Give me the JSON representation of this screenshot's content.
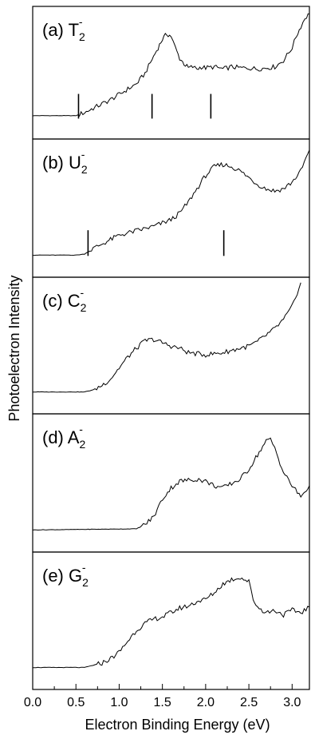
{
  "chart_data": {
    "type": "line",
    "xlabel": "Electron Binding Energy (eV)",
    "ylabel": "Photoelectron Intensity",
    "xlim": [
      0.0,
      3.2
    ],
    "x_ticks": [
      "0.0",
      "0.5",
      "1.0",
      "1.5",
      "2.0",
      "2.5",
      "3.0"
    ],
    "tick_values": [
      0.0,
      0.5,
      1.0,
      1.5,
      2.0,
      2.5,
      3.0
    ],
    "grid": false,
    "panels": [
      {
        "label": "(a) T",
        "subscript": "2",
        "superscript": "-",
        "markers": [
          0.53,
          1.38,
          2.06
        ],
        "ylim": [
          0,
          1
        ],
        "x": [
          0.0,
          0.5,
          0.6,
          0.7,
          0.8,
          0.9,
          1.0,
          1.1,
          1.2,
          1.3,
          1.38,
          1.45,
          1.5,
          1.55,
          1.6,
          1.65,
          1.7,
          1.75,
          1.8,
          1.85,
          1.9,
          1.95,
          2.0,
          2.1,
          2.2,
          2.3,
          2.4,
          2.5,
          2.6,
          2.7,
          2.8,
          2.9,
          3.0,
          3.05,
          3.1,
          3.15,
          3.2
        ],
        "y": [
          0.02,
          0.02,
          0.05,
          0.09,
          0.13,
          0.17,
          0.22,
          0.27,
          0.32,
          0.42,
          0.55,
          0.66,
          0.74,
          0.79,
          0.77,
          0.66,
          0.56,
          0.51,
          0.47,
          0.48,
          0.46,
          0.48,
          0.47,
          0.48,
          0.46,
          0.48,
          0.47,
          0.47,
          0.46,
          0.47,
          0.48,
          0.54,
          0.66,
          0.77,
          0.86,
          0.94,
          0.98
        ]
      },
      {
        "label": "(b) U",
        "subscript": "2",
        "superscript": "-",
        "markers": [
          0.64,
          2.21
        ],
        "ylim": [
          0,
          1
        ],
        "x": [
          0.0,
          0.5,
          0.6,
          0.7,
          0.8,
          0.9,
          1.0,
          1.2,
          1.4,
          1.6,
          1.7,
          1.8,
          1.9,
          2.0,
          2.1,
          2.2,
          2.3,
          2.4,
          2.5,
          2.6,
          2.7,
          2.8,
          2.9,
          3.0,
          3.1,
          3.2
        ],
        "y": [
          0.0,
          0.0,
          0.01,
          0.06,
          0.1,
          0.14,
          0.18,
          0.22,
          0.26,
          0.32,
          0.38,
          0.48,
          0.6,
          0.72,
          0.8,
          0.82,
          0.8,
          0.76,
          0.7,
          0.64,
          0.6,
          0.58,
          0.6,
          0.66,
          0.76,
          0.95
        ]
      },
      {
        "label": "(c) C",
        "subscript": "2",
        "superscript": "-",
        "markers": [],
        "ylim": [
          0,
          1
        ],
        "x": [
          0.0,
          0.6,
          0.7,
          0.8,
          0.9,
          1.0,
          1.1,
          1.2,
          1.3,
          1.4,
          1.5,
          1.6,
          1.7,
          1.8,
          1.9,
          2.0,
          2.1,
          2.2,
          2.3,
          2.4,
          2.5,
          2.6,
          2.7,
          2.8,
          2.9,
          3.0,
          3.1
        ],
        "y": [
          0.0,
          0.0,
          0.02,
          0.06,
          0.12,
          0.22,
          0.32,
          0.4,
          0.47,
          0.48,
          0.45,
          0.42,
          0.4,
          0.36,
          0.35,
          0.34,
          0.35,
          0.36,
          0.38,
          0.4,
          0.42,
          0.46,
          0.52,
          0.58,
          0.66,
          0.78,
          1.0
        ]
      },
      {
        "label": "(d) A",
        "subscript": "2",
        "superscript": "-",
        "markers": [],
        "ylim": [
          0,
          1
        ],
        "x": [
          0.0,
          1.2,
          1.3,
          1.4,
          1.5,
          1.6,
          1.7,
          1.8,
          1.9,
          2.0,
          2.1,
          2.2,
          2.3,
          2.4,
          2.5,
          2.6,
          2.7,
          2.75,
          2.8,
          2.9,
          3.0,
          3.1,
          3.2
        ],
        "y": [
          0.0,
          0.01,
          0.05,
          0.12,
          0.28,
          0.38,
          0.44,
          0.45,
          0.46,
          0.44,
          0.4,
          0.38,
          0.42,
          0.46,
          0.55,
          0.68,
          0.8,
          0.82,
          0.74,
          0.52,
          0.4,
          0.3,
          0.4
        ]
      },
      {
        "label": "(e) G",
        "subscript": "2",
        "superscript": "-",
        "markers": [],
        "ylim": [
          0,
          1
        ],
        "x": [
          0.0,
          0.6,
          0.7,
          0.8,
          0.9,
          1.0,
          1.1,
          1.2,
          1.3,
          1.4,
          1.5,
          1.6,
          1.7,
          1.8,
          1.9,
          2.0,
          2.1,
          2.2,
          2.3,
          2.4,
          2.5,
          2.55,
          2.6,
          2.7,
          2.8,
          2.9,
          3.0,
          3.1,
          3.2
        ],
        "y": [
          0.0,
          0.0,
          0.02,
          0.04,
          0.08,
          0.14,
          0.24,
          0.34,
          0.4,
          0.44,
          0.46,
          0.5,
          0.54,
          0.56,
          0.6,
          0.62,
          0.68,
          0.76,
          0.8,
          0.82,
          0.78,
          0.62,
          0.55,
          0.5,
          0.52,
          0.48,
          0.52,
          0.5,
          0.55
        ]
      }
    ]
  }
}
